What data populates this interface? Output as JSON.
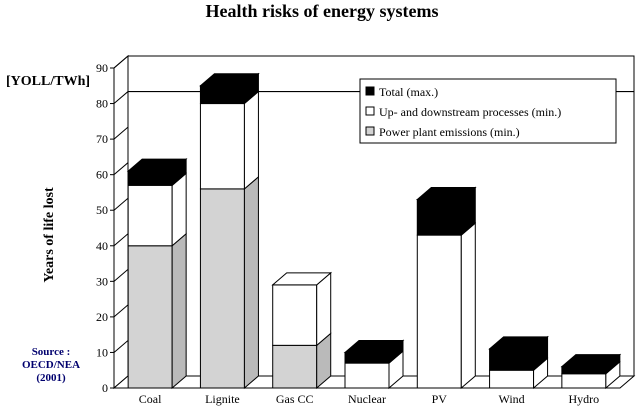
{
  "chart_data": {
    "type": "bar",
    "stacked": true,
    "three_d": true,
    "title": "Health risks of energy systems",
    "unit_label": "[YOLL/TWh]",
    "ylabel": "Years of life lost",
    "ylim": [
      0,
      90
    ],
    "yticks": [
      0,
      10,
      20,
      30,
      40,
      50,
      60,
      70,
      80,
      90
    ],
    "categories": [
      "Coal",
      "Lignite",
      "Gas CC",
      "Nuclear",
      "PV",
      "Wind",
      "Hydro"
    ],
    "series": [
      {
        "name": "Power plant emissions (min.)",
        "color": "#d3d3d3",
        "values": [
          40,
          56,
          12,
          0,
          0,
          0,
          0
        ]
      },
      {
        "name": "Up- and downstream processes (min.)",
        "color": "#ffffff",
        "values": [
          17,
          24,
          17,
          7,
          43,
          5,
          4
        ]
      },
      {
        "name": "Total (max.)",
        "color": "#000000",
        "values": [
          4,
          5,
          0,
          3,
          10,
          6,
          2
        ]
      }
    ],
    "legend_order": [
      2,
      1,
      0
    ],
    "legend_position": "top-right",
    "grid": false
  },
  "source": [
    "Source :",
    "OECD/NEA",
    "(2001)"
  ]
}
